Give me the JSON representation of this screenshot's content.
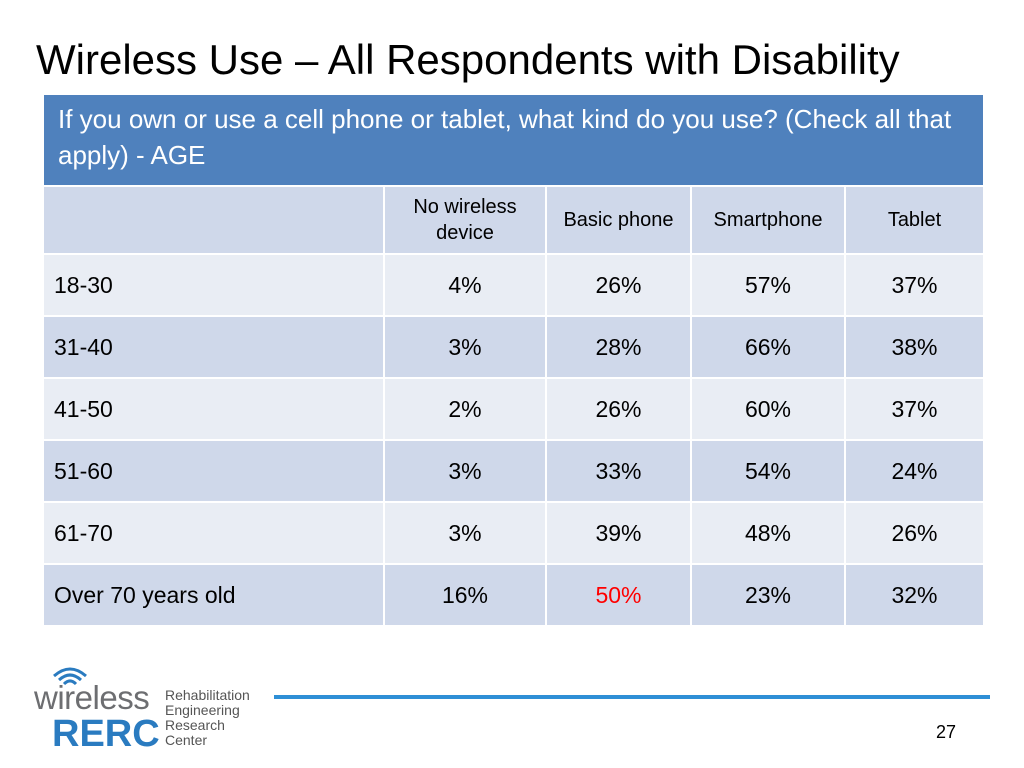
{
  "slide": {
    "title": "Wireless Use – All Respondents with Disability",
    "page_number": "27"
  },
  "table": {
    "question": "If you own or use a cell phone or tablet, what kind do you use? (Check all that apply)  - AGE",
    "columns": [
      "",
      "No wireless device",
      "Basic phone",
      "Smartphone",
      "Tablet"
    ],
    "rows": [
      {
        "label": "18-30",
        "values": [
          "4%",
          "26%",
          "57%",
          "37%"
        ]
      },
      {
        "label": "31-40",
        "values": [
          "3%",
          "28%",
          "66%",
          "38%"
        ]
      },
      {
        "label": "41-50",
        "values": [
          "2%",
          "26%",
          "60%",
          "37%"
        ]
      },
      {
        "label": "51-60",
        "values": [
          "3%",
          "33%",
          "54%",
          "24%"
        ]
      },
      {
        "label": "61-70",
        "values": [
          "3%",
          "39%",
          "48%",
          "26%"
        ]
      },
      {
        "label": "Over 70 years old",
        "values": [
          "16%",
          "50%",
          "23%",
          "32%"
        ]
      }
    ],
    "highlight_color": "#ff0000",
    "header_color": "#4f81bd"
  },
  "logo": {
    "wireless": "wireless",
    "rerc": "RERC",
    "lines": [
      "Rehabilitation",
      "Engineering",
      "Research",
      "Center"
    ]
  }
}
